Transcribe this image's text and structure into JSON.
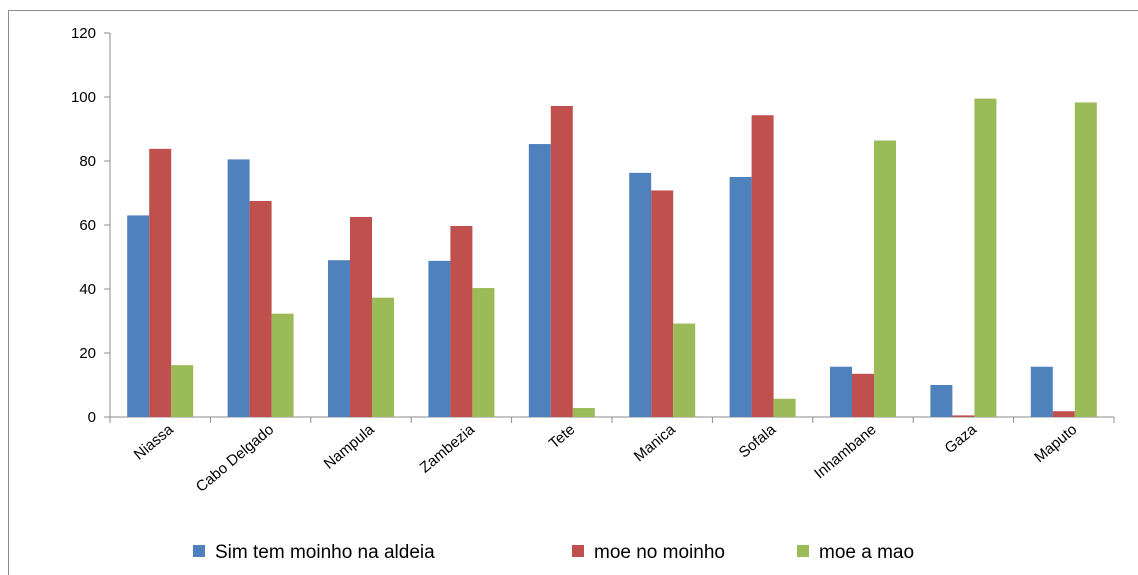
{
  "chart_data": {
    "type": "bar",
    "categories": [
      "Niassa",
      "Cabo Delgado",
      "Nampula",
      "Zambezia",
      "Tete",
      "Manica",
      "Sofala",
      "Inhambane",
      "Gaza",
      "Maputo"
    ],
    "series": [
      {
        "name": "Sim tem moinho na aldeia",
        "color": "#4f81bd",
        "values": [
          63,
          80.5,
          49,
          48.8,
          85.3,
          76.3,
          75,
          15.7,
          10,
          15.7
        ]
      },
      {
        "name": "moe no moinho",
        "color": "#c0504d",
        "values": [
          83.8,
          67.5,
          62.5,
          59.7,
          97.2,
          70.8,
          94.3,
          13.5,
          0.5,
          1.8
        ]
      },
      {
        "name": "moe a mao",
        "color": "#9bbb59",
        "values": [
          16.2,
          32.3,
          37.3,
          40.3,
          2.8,
          29.2,
          5.7,
          86.4,
          99.5,
          98.3
        ]
      }
    ],
    "ylim": [
      0,
      120
    ],
    "yticks": [
      0,
      20,
      40,
      60,
      80,
      100,
      120
    ],
    "ytick_labels": [
      "0",
      "20",
      "40",
      "60",
      "80",
      "100",
      "120"
    ],
    "legend_position": "bottom",
    "grid": false,
    "title": "",
    "xlabel": "",
    "ylabel": ""
  }
}
